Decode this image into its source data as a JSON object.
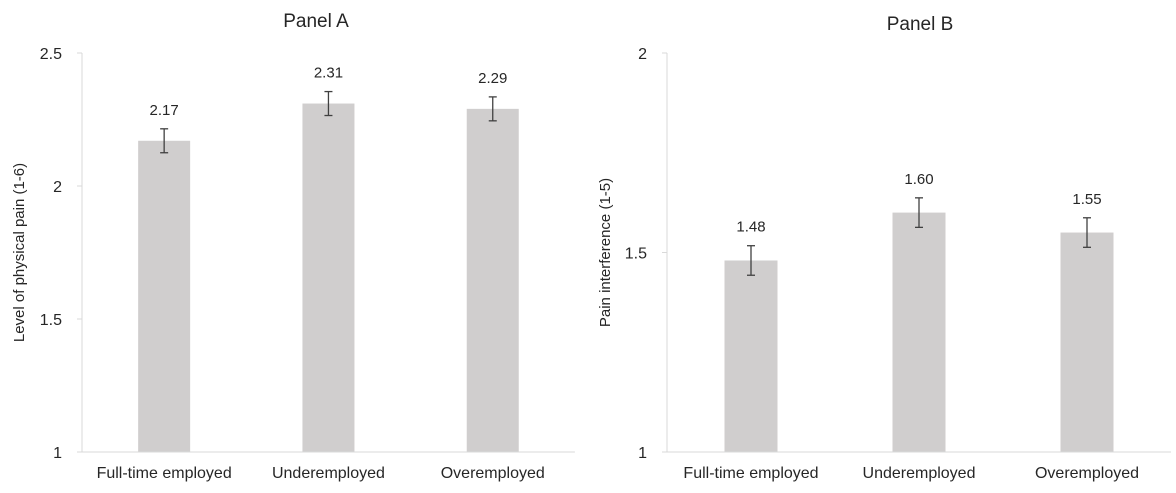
{
  "chart_data": [
    {
      "type": "bar",
      "title": "Panel A",
      "xlabel": "",
      "ylabel": "Level of physical pain (1-6)",
      "categories": [
        "Full-time employed",
        "Underemployed",
        "Overemployed"
      ],
      "values": [
        2.17,
        2.31,
        2.29
      ],
      "value_labels": [
        "2.17",
        "2.31",
        "2.29"
      ],
      "error": [
        0.045,
        0.045,
        0.045
      ],
      "ylim": [
        1,
        2.5
      ],
      "yticks": [
        1,
        1.5,
        2,
        2.5
      ],
      "ytick_labels": [
        "1",
        "1.5",
        "2",
        "2.5"
      ],
      "grid": false,
      "legend": "none",
      "bar_color": "#d0cece",
      "error_color": "#404040"
    },
    {
      "type": "bar",
      "title": "Panel B",
      "xlabel": "",
      "ylabel": "Pain interference (1-5)",
      "categories": [
        "Full-time employed",
        "Underemployed",
        "Overemployed"
      ],
      "values": [
        1.48,
        1.6,
        1.55
      ],
      "value_labels": [
        "1.48",
        "1.60",
        "1.55"
      ],
      "error": [
        0.037,
        0.037,
        0.037
      ],
      "ylim": [
        1,
        2
      ],
      "yticks": [
        1,
        1.5,
        2
      ],
      "ytick_labels": [
        "1",
        "1.5",
        "2"
      ],
      "grid": false,
      "legend": "none",
      "bar_color": "#d0cece",
      "error_color": "#404040"
    }
  ]
}
